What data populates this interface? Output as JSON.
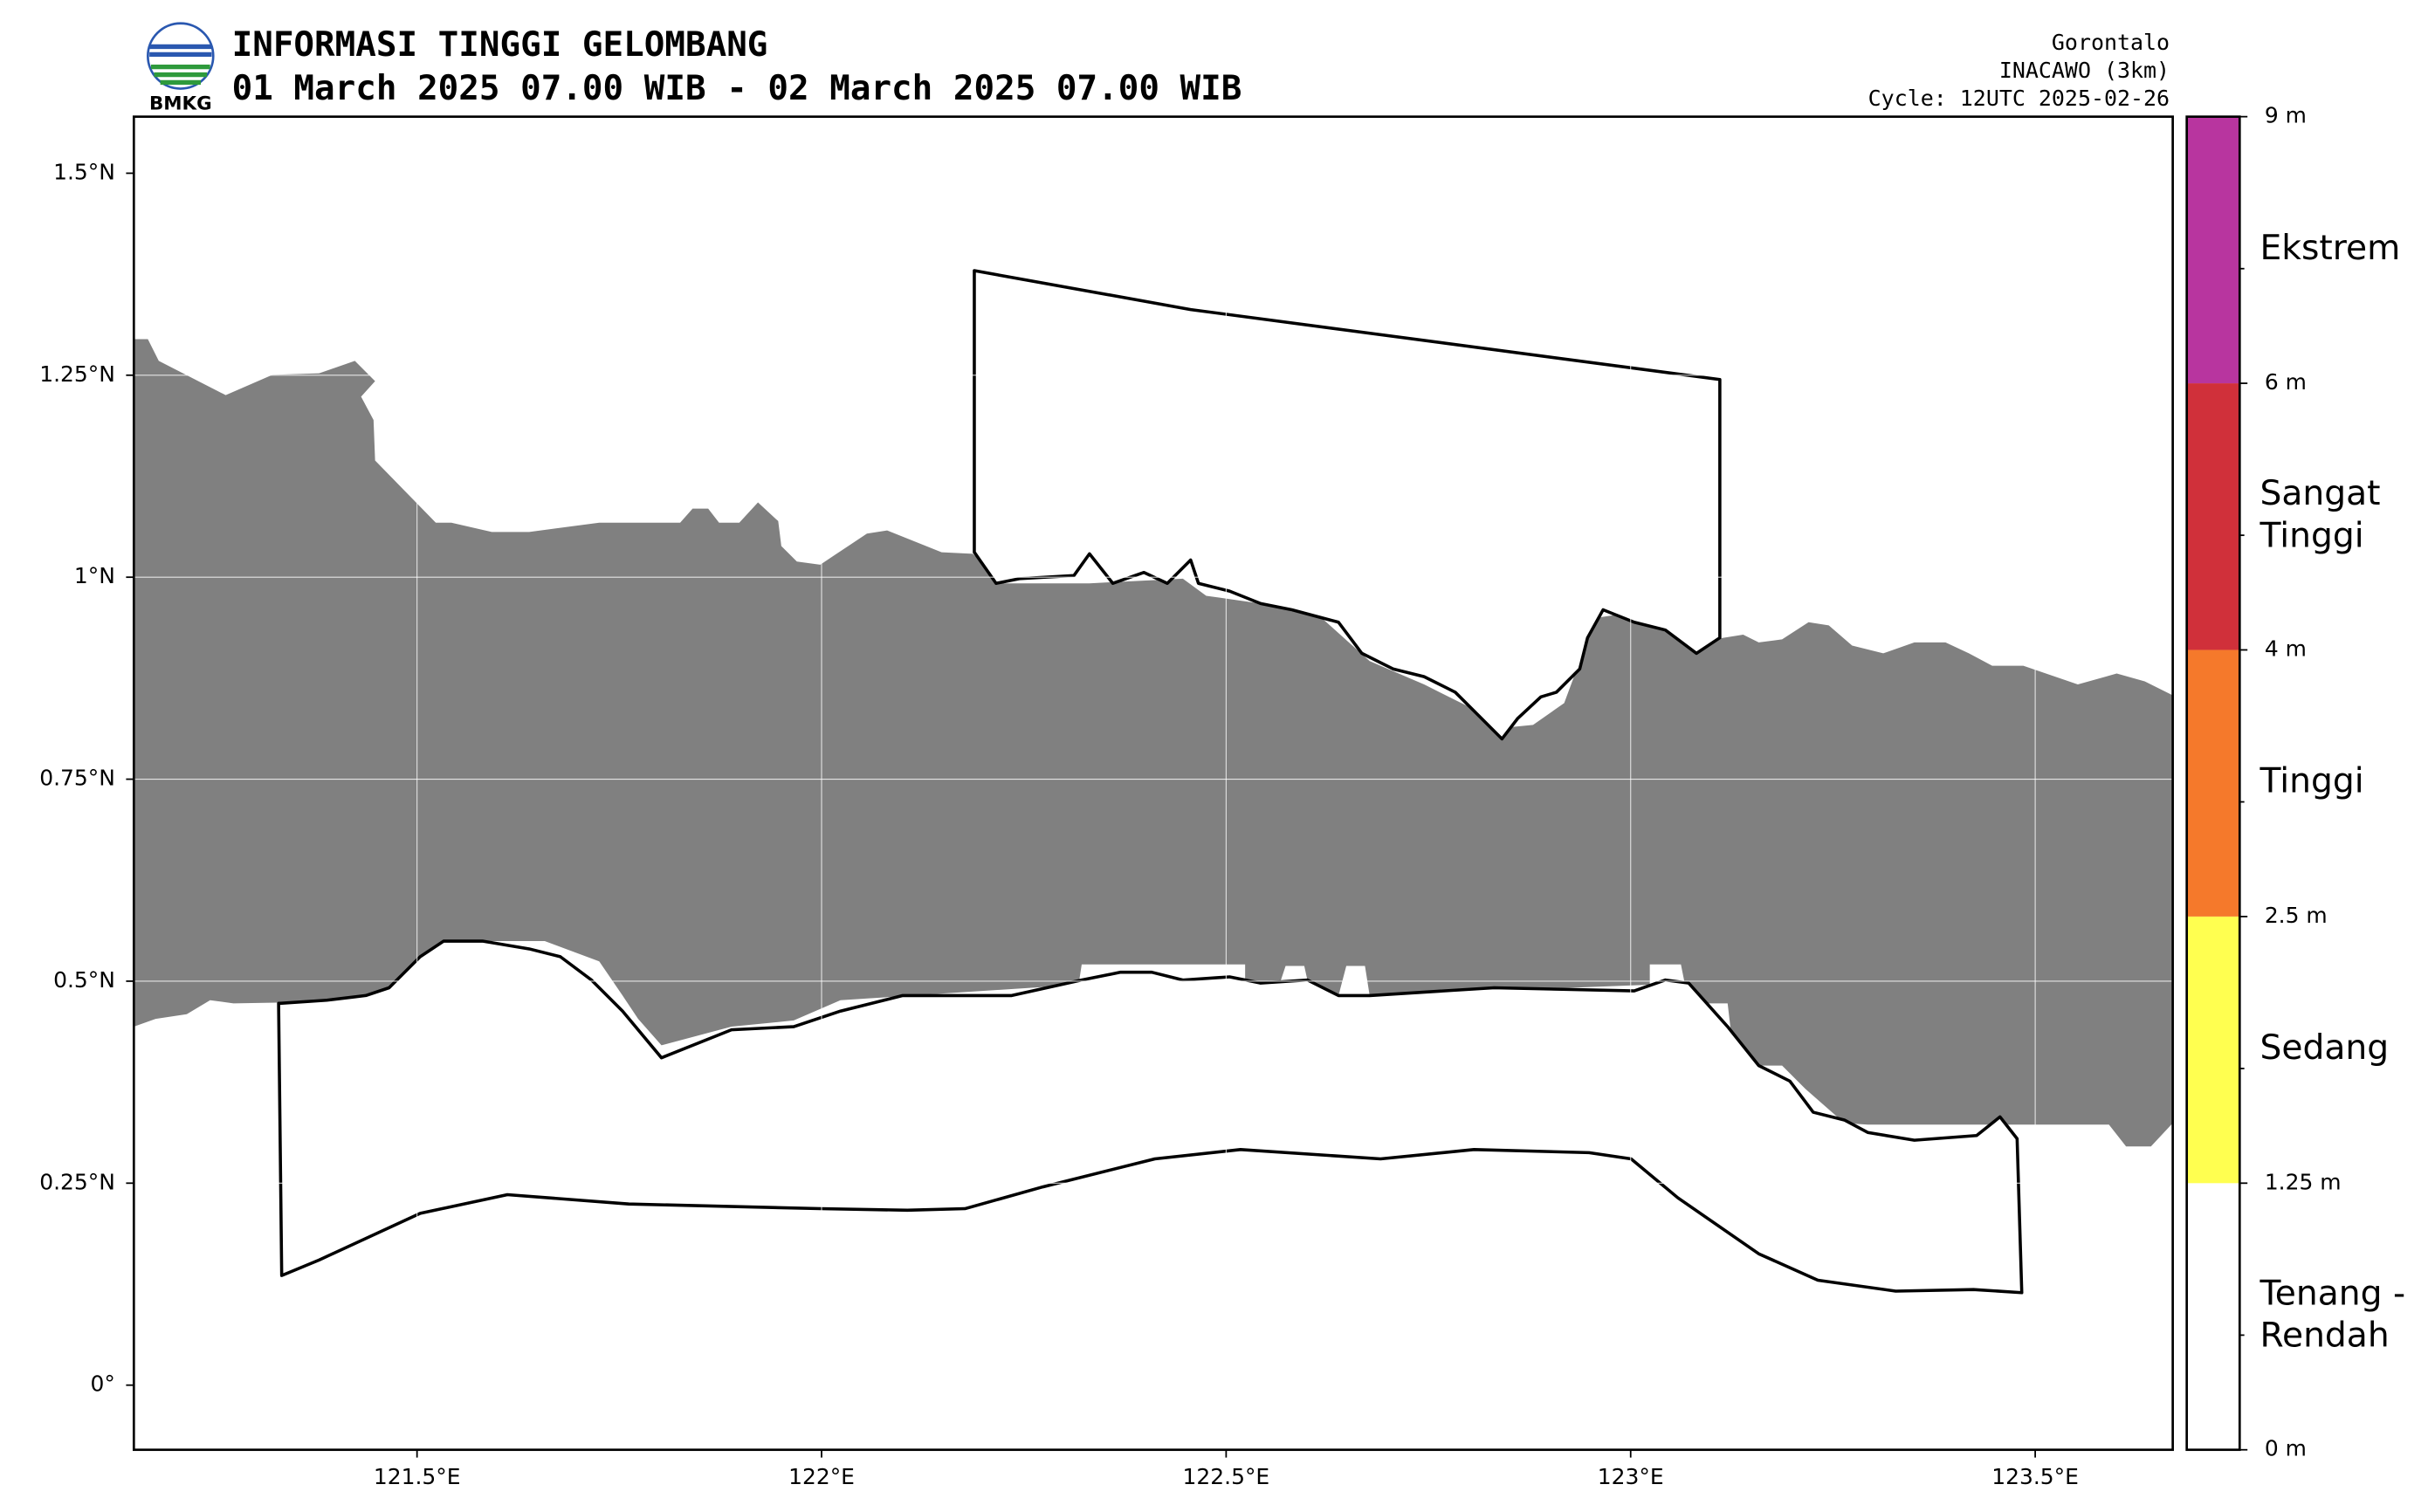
{
  "header": {
    "logo_text": "BMKG",
    "title": "INFORMASI TINGGI GELOMBANG",
    "subtitle": "01 March 2025 07.00 WIB - 02 March 2025 07.00 WIB",
    "region": "Gorontalo",
    "model": "INACAWO (3km)",
    "cycle": "Cycle: 12UTC 2025-02-26"
  },
  "map": {
    "xlim": [
      121.15,
      123.67
    ],
    "ylim": [
      -0.08,
      1.57
    ],
    "xticks": [
      {
        "value": 121.5,
        "label": "121.5°E"
      },
      {
        "value": 122,
        "label": "122°E"
      },
      {
        "value": 122.5,
        "label": "122.5°E"
      },
      {
        "value": 123,
        "label": "123°E"
      },
      {
        "value": 123.5,
        "label": "123.5°E"
      }
    ],
    "yticks": [
      {
        "value": 0,
        "label": "0°"
      },
      {
        "value": 0.25,
        "label": "0.25°N"
      },
      {
        "value": 0.5,
        "label": "0.5°N"
      },
      {
        "value": 0.75,
        "label": "0.75°N"
      },
      {
        "value": 1,
        "label": "1°N"
      },
      {
        "value": 1.25,
        "label": "1.25°N"
      },
      {
        "value": 1.5,
        "label": "1.5°N"
      }
    ],
    "grid": true
  },
  "legend": {
    "bounds": [
      "0 m",
      "1.25 m",
      "2.5 m",
      "4 m",
      "6 m",
      "9 m"
    ],
    "classes": [
      {
        "lines": [
          "Tenang -",
          "Rendah"
        ],
        "color": "#ffffff"
      },
      {
        "lines": [
          "Sedang"
        ],
        "color": "#ffff50"
      },
      {
        "lines": [
          "Tinggi"
        ],
        "color": "#f5792b"
      },
      {
        "lines": [
          "Sangat",
          "Tinggi"
        ],
        "color": "#d0303a"
      },
      {
        "lines": [
          "Ekstrem"
        ],
        "color": "#b8359f"
      }
    ]
  }
}
